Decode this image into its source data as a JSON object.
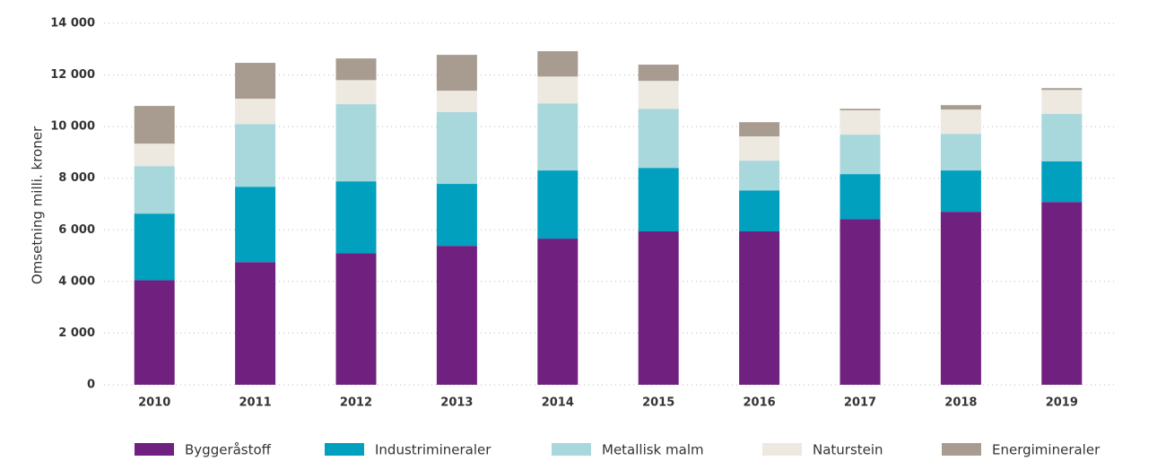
{
  "chart_data": {
    "type": "stacked_bar",
    "y_label": "Omsetning milli. kroner",
    "categories": [
      "2010",
      "2011",
      "2012",
      "2013",
      "2014",
      "2015",
      "2016",
      "2017",
      "2018",
      "2019"
    ],
    "series": [
      {
        "name": "Byggeråstoff",
        "color": "#70217f",
        "values": [
          4050,
          4750,
          5100,
          5380,
          5660,
          5940,
          5940,
          6420,
          6700,
          7080
        ]
      },
      {
        "name": "Industrimineraler",
        "color": "#00a0be",
        "values": [
          2580,
          2920,
          2780,
          2400,
          2640,
          2460,
          1590,
          1740,
          1600,
          1570
        ]
      },
      {
        "name": "Metallisk malm",
        "color": "#a8d8dc",
        "values": [
          1840,
          2430,
          2990,
          2780,
          2600,
          2290,
          1150,
          1530,
          1420,
          1840
        ]
      },
      {
        "name": "Naturstein",
        "color": "#ede9e1",
        "values": [
          870,
          980,
          930,
          830,
          1040,
          1080,
          940,
          940,
          940,
          930
        ]
      },
      {
        "name": "Energimineraler",
        "color": "#a89c90",
        "values": [
          1460,
          1390,
          840,
          1390,
          980,
          630,
          550,
          60,
          170,
          70
        ]
      }
    ],
    "ylim": [
      0,
      14000
    ],
    "yticks": [
      0,
      {
        "value": 2000,
        "label": "2 000"
      },
      {
        "value": 4000,
        "label": "4 000"
      },
      {
        "value": 6000,
        "label": "6 000"
      },
      {
        "value": 8000,
        "label": "8 000"
      },
      {
        "value": 10000,
        "label": "10 000"
      },
      {
        "value": 12000,
        "label": "12 000"
      },
      {
        "value": 14000,
        "label": "14 000"
      }
    ],
    "grid": true,
    "legend": "bottom"
  }
}
